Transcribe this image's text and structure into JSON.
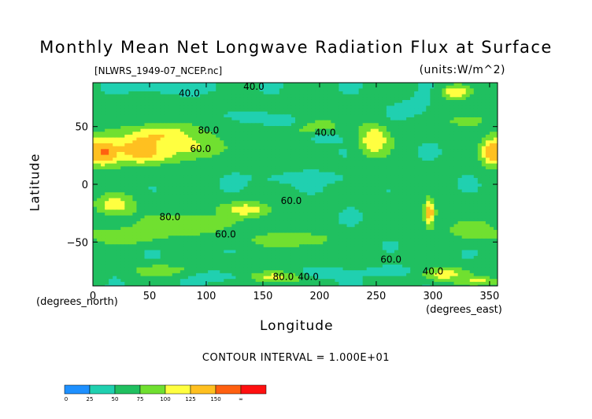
{
  "chart_data": {
    "type": "heatmap",
    "title": "Monthly Mean Net Longwave Radiation Flux at Surface",
    "file_label": "[NLWRS_1949-07_NCEP.nc]",
    "units_label": "(units:W/m^2)",
    "xlabel": "Longitude",
    "ylabel": "Latitude",
    "x_unit": "(degrees_east)",
    "y_unit": "(degrees_north)",
    "contour_interval": "CONTOUR INTERVAL = 1.000E+01",
    "xlim": [
      0,
      357
    ],
    "ylim": [
      -88,
      88
    ],
    "x_ticks": [
      0,
      50,
      100,
      150,
      200,
      250,
      300,
      350
    ],
    "x_tick_labels": [
      "0",
      "50",
      "100",
      "150",
      "200",
      "250",
      "300",
      "350"
    ],
    "y_ticks": [
      50,
      0,
      -50
    ],
    "y_tick_labels": [
      "50",
      "0",
      "−50"
    ],
    "colorbar": {
      "bounds": [
        "0",
        "25",
        "50",
        "75",
        "100",
        "125",
        "150",
        "∞"
      ],
      "colors": [
        "#1e90ff",
        "#20d0b0",
        "#20c060",
        "#70e030",
        "#ffff40",
        "#ffc020",
        "#ff6010",
        "#ff1010"
      ]
    },
    "contour_labels": [
      {
        "text": "40.0",
        "lon": 142,
        "lat": 82
      },
      {
        "text": "40.0",
        "lon": 85,
        "lat": 76
      },
      {
        "text": "80.0",
        "lon": 102,
        "lat": 44
      },
      {
        "text": "60.0",
        "lon": 95,
        "lat": 28
      },
      {
        "text": "40.0",
        "lon": 205,
        "lat": 42
      },
      {
        "text": "80.0",
        "lon": 68,
        "lat": -31
      },
      {
        "text": "60.0",
        "lon": 175,
        "lat": -17
      },
      {
        "text": "60.0",
        "lon": 117,
        "lat": -46
      },
      {
        "text": "60.0",
        "lon": 263,
        "lat": -68
      },
      {
        "text": "40.0",
        "lon": 300,
        "lat": -78
      },
      {
        "text": "80.0",
        "lon": 168,
        "lat": -83
      },
      {
        "text": "40.0",
        "lon": 190,
        "lat": -83
      }
    ],
    "blobs": [
      {
        "lon": 10,
        "lat": 28,
        "rx": 14,
        "ry": 12,
        "v": 160
      },
      {
        "lon": 45,
        "lat": 30,
        "rx": 30,
        "ry": 16,
        "v": 150
      },
      {
        "lon": 62,
        "lat": 40,
        "rx": 20,
        "ry": 10,
        "v": 140
      },
      {
        "lon": 85,
        "lat": 34,
        "rx": 30,
        "ry": 14,
        "v": 105
      },
      {
        "lon": 353,
        "lat": 28,
        "rx": 10,
        "ry": 12,
        "v": 150
      },
      {
        "lon": 248,
        "lat": 38,
        "rx": 14,
        "ry": 14,
        "v": 125
      },
      {
        "lon": 320,
        "lat": 80,
        "rx": 12,
        "ry": 6,
        "v": 125
      },
      {
        "lon": 330,
        "lat": 55,
        "rx": 30,
        "ry": 10,
        "v": 80
      },
      {
        "lon": 145,
        "lat": 45,
        "rx": 30,
        "ry": 16,
        "v": 75
      },
      {
        "lon": 195,
        "lat": 50,
        "rx": 30,
        "ry": 10,
        "v": 85
      },
      {
        "lon": 20,
        "lat": -18,
        "rx": 18,
        "ry": 10,
        "v": 115
      },
      {
        "lon": 135,
        "lat": -22,
        "rx": 22,
        "ry": 7,
        "v": 115
      },
      {
        "lon": 297,
        "lat": -25,
        "rx": 5,
        "ry": 12,
        "v": 150
      },
      {
        "lon": 80,
        "lat": -35,
        "rx": 40,
        "ry": 10,
        "v": 100
      },
      {
        "lon": 30,
        "lat": -45,
        "rx": 30,
        "ry": 7,
        "v": 100
      },
      {
        "lon": 175,
        "lat": -48,
        "rx": 40,
        "ry": 7,
        "v": 95
      },
      {
        "lon": 335,
        "lat": -40,
        "rx": 25,
        "ry": 10,
        "v": 90
      },
      {
        "lon": 60,
        "lat": -75,
        "rx": 25,
        "ry": 5,
        "v": 100
      },
      {
        "lon": 160,
        "lat": -80,
        "rx": 30,
        "ry": 5,
        "v": 110
      },
      {
        "lon": 310,
        "lat": -78,
        "rx": 20,
        "ry": 6,
        "v": 115
      },
      {
        "lon": 340,
        "lat": -84,
        "rx": 20,
        "ry": 4,
        "v": 105
      },
      {
        "lon": 140,
        "lat": 58,
        "rx": 25,
        "ry": 8,
        "v": 45
      },
      {
        "lon": 165,
        "lat": 55,
        "rx": 20,
        "ry": 6,
        "v": 35
      },
      {
        "lon": 205,
        "lat": 40,
        "rx": 14,
        "ry": 5,
        "v": 30
      },
      {
        "lon": 70,
        "lat": 84,
        "rx": 40,
        "ry": 5,
        "v": 35
      },
      {
        "lon": 280,
        "lat": 65,
        "rx": 14,
        "ry": 8,
        "v": 40
      },
      {
        "lon": 290,
        "lat": 72,
        "rx": 6,
        "ry": 5,
        "v": 25
      },
      {
        "lon": 200,
        "lat": -76,
        "rx": 20,
        "ry": 6,
        "v": 30
      },
      {
        "lon": 110,
        "lat": -80,
        "rx": 25,
        "ry": 5,
        "v": 40
      },
      {
        "lon": 262,
        "lat": -75,
        "rx": 20,
        "ry": 5,
        "v": 35
      },
      {
        "lon": 190,
        "lat": 5,
        "rx": 90,
        "ry": 10,
        "v": 48
      },
      {
        "lon": 60,
        "lat": 8,
        "rx": 40,
        "ry": 10,
        "v": 52
      },
      {
        "lon": 270,
        "lat": 5,
        "rx": 40,
        "ry": 12,
        "v": 52
      },
      {
        "lon": 200,
        "lat": -65,
        "rx": 70,
        "ry": 6,
        "v": 65
      }
    ]
  }
}
